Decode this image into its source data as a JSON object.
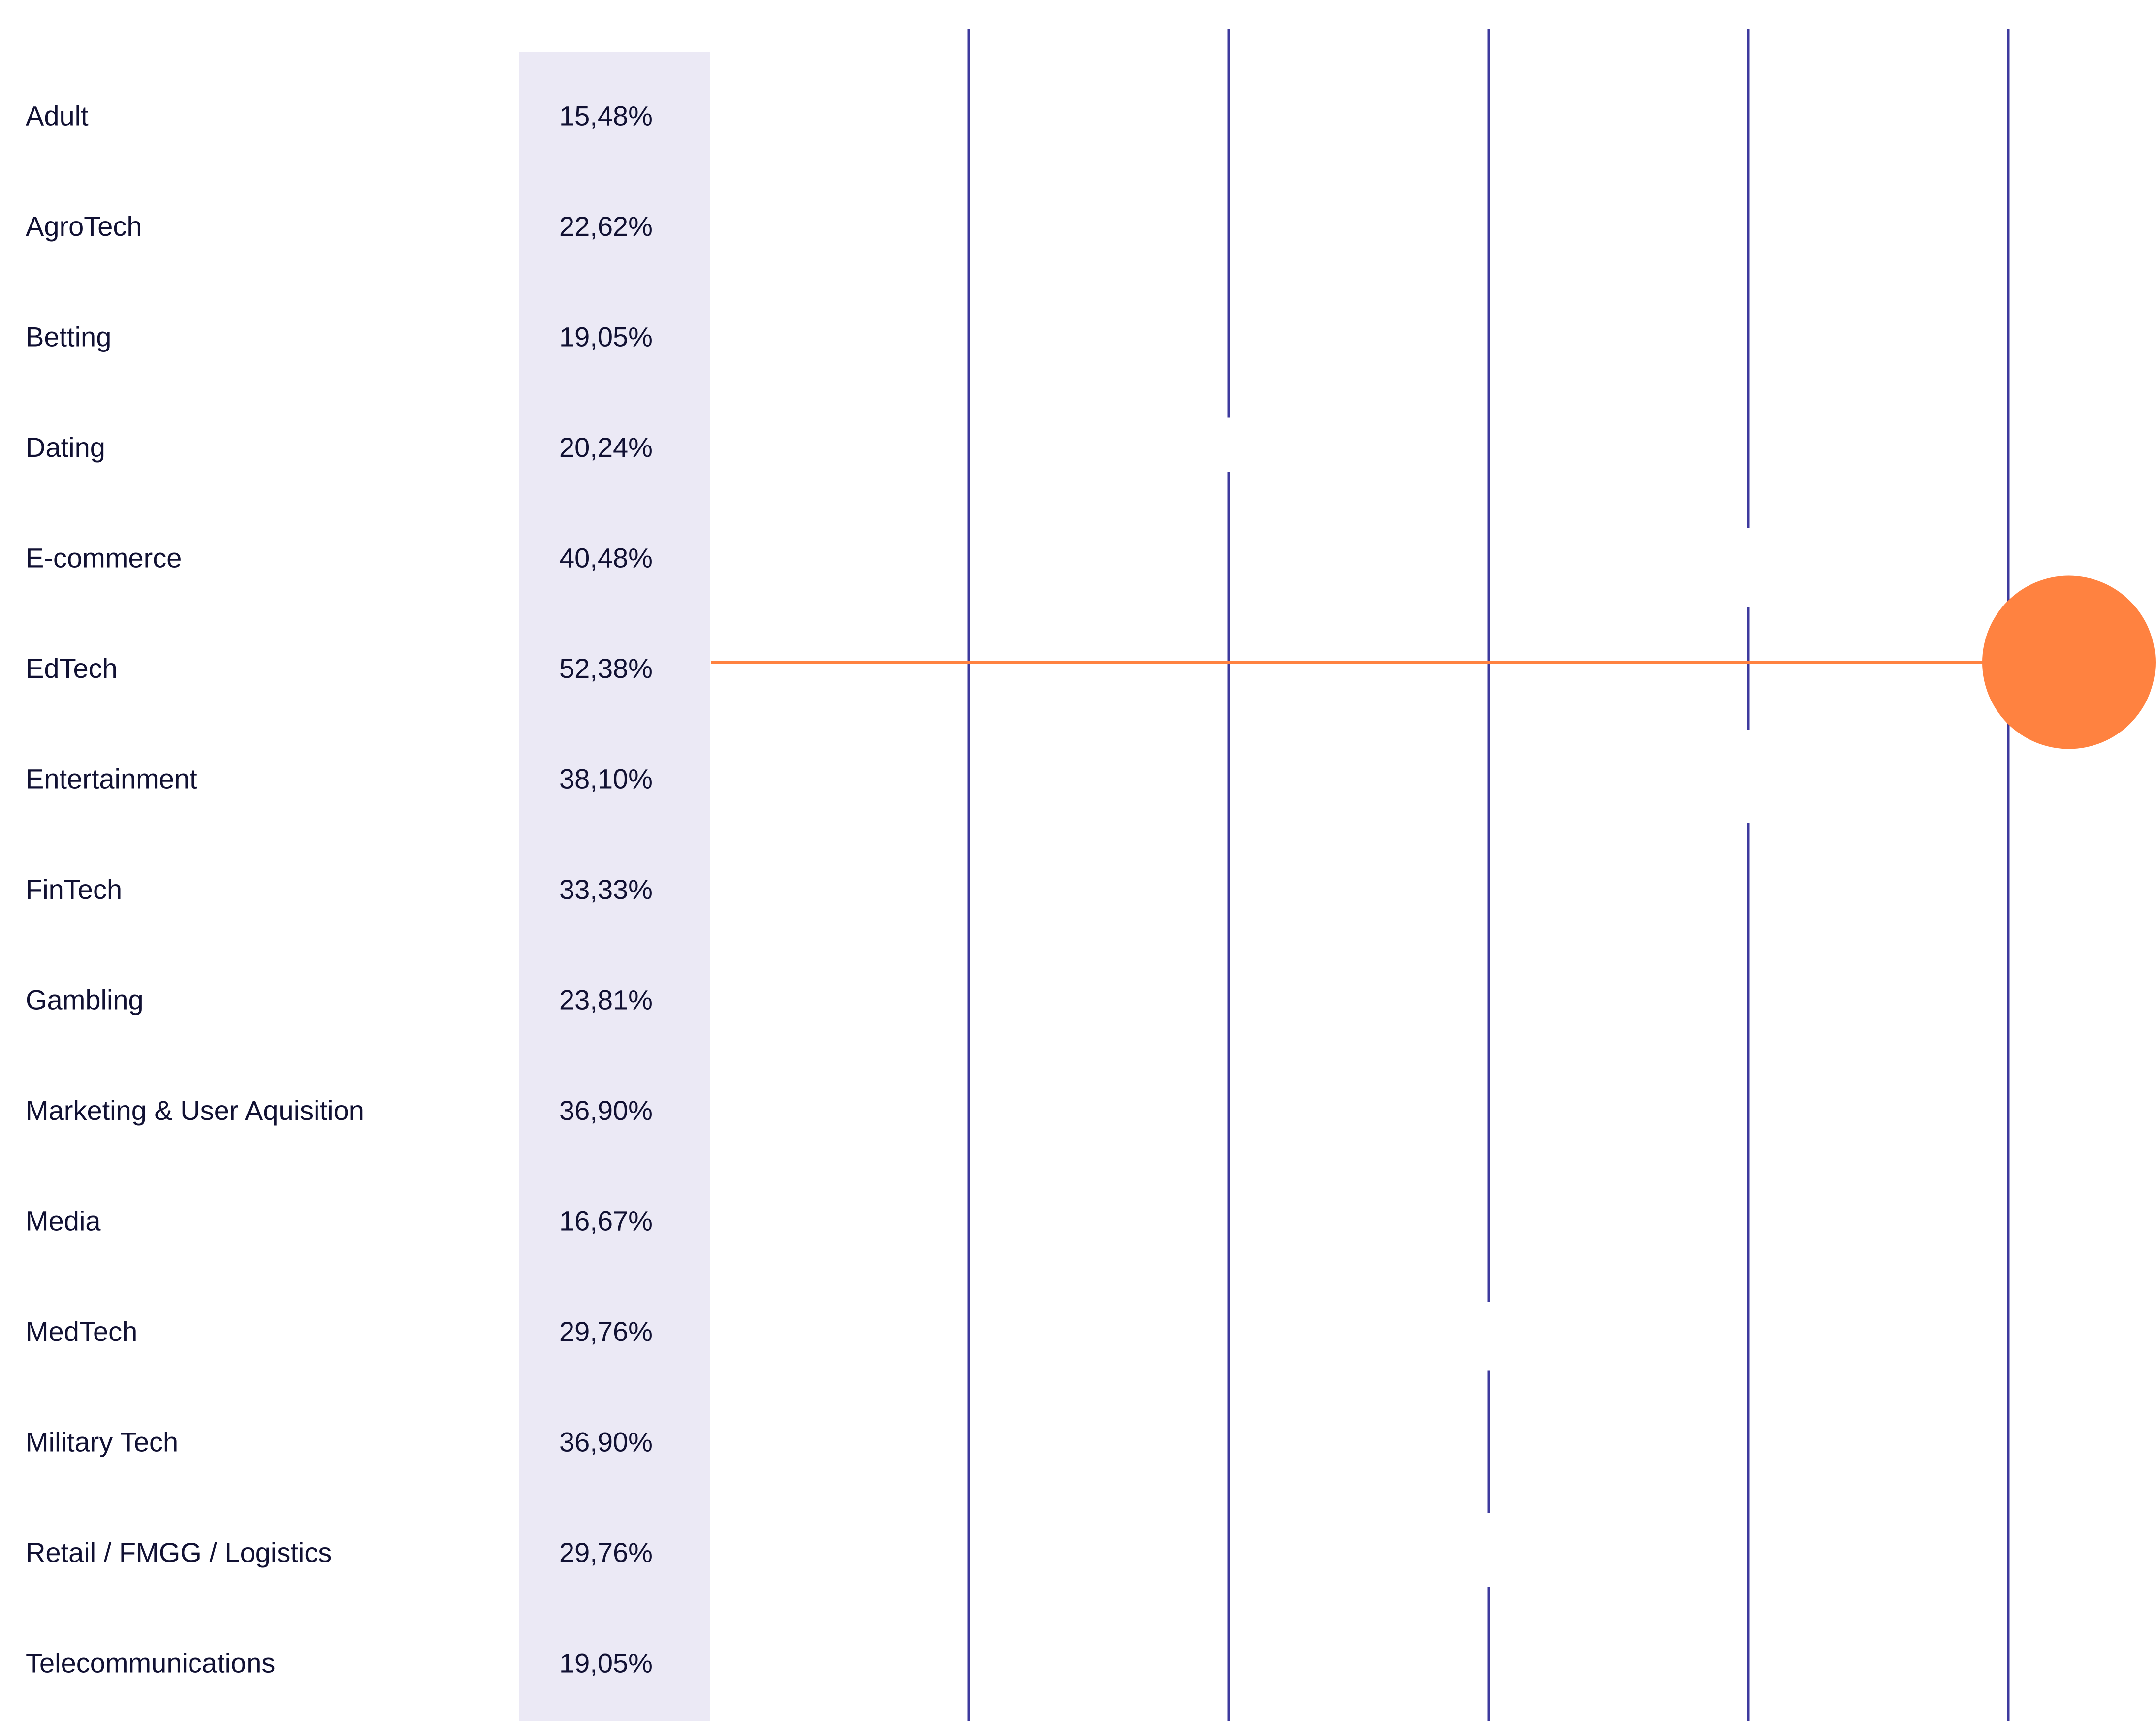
{
  "chart_data": {
    "type": "table",
    "title": "",
    "xlabel": "",
    "ylabel": "",
    "categories": [
      "Adult",
      "AgroTech",
      "Betting",
      "Dating",
      "E-commerce",
      "EdTech",
      "Entertainment",
      "FinTech",
      "Gambling",
      "Marketing & User Aquisition",
      "Media",
      "MedTech",
      "Military Tech",
      "Retail / FMGG / Logistics",
      "Telecommunications"
    ],
    "value_labels": [
      "15,48%",
      "22,62%",
      "19,05%",
      "20,24%",
      "40,48%",
      "52,38%",
      "38,10%",
      "33,33%",
      "23,81%",
      "36,90%",
      "16,67%",
      "29,76%",
      "36,90%",
      "29,76%",
      "19,05%"
    ],
    "values": [
      15.48,
      22.62,
      19.05,
      20.24,
      40.48,
      52.38,
      38.1,
      33.33,
      23.81,
      36.9,
      16.67,
      29.76,
      36.9,
      29.76,
      19.05
    ],
    "highlighted_category": "EdTech",
    "grid": true,
    "colors": {
      "value_column_bg": "#ebe9f5",
      "grid_line": "#3d3a9e",
      "highlight": "#ff8240",
      "text": "#111133"
    }
  }
}
